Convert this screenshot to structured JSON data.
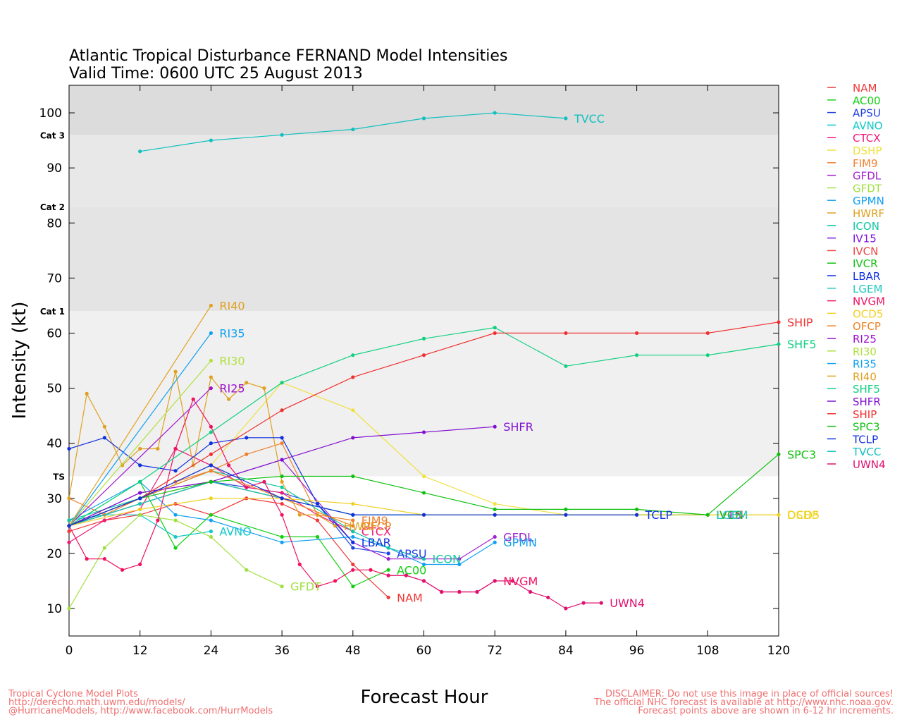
{
  "chart_data": {
    "type": "line",
    "title": "Atlantic Tropical Disturbance FERNAND Model Intensities",
    "subtitle": "Valid Time: 0600 UTC 25 August 2013",
    "xlabel": "Forecast Hour",
    "ylabel": "Intensity (kt)",
    "xlim": [
      0,
      120
    ],
    "ylim": [
      5,
      105
    ],
    "xticks": [
      "0",
      "12",
      "24",
      "36",
      "48",
      "60",
      "72",
      "84",
      "96",
      "108",
      "120"
    ],
    "yticks": [
      "10",
      "20",
      "30",
      "40",
      "50",
      "60",
      "70",
      "80",
      "90",
      "100"
    ],
    "bands": [
      {
        "label": "Cat 3",
        "from": 96,
        "to": 105,
        "color": "#dcdcdc"
      },
      {
        "label": "Cat 2",
        "from": 83,
        "to": 96,
        "color": "#e8e8e8"
      },
      {
        "label": "Cat 1",
        "from": 64,
        "to": 83,
        "color": "#e4e4e4"
      },
      {
        "label": "TS",
        "from": 34,
        "to": 64,
        "color": "#f0f0f0"
      }
    ],
    "series": [
      {
        "name": "NAM",
        "color": "#f03838",
        "label": "NAM",
        "x": [
          0,
          6,
          12,
          18,
          24,
          30,
          36,
          42,
          48,
          54
        ],
        "y": [
          24,
          26,
          27,
          29,
          27,
          30,
          29,
          26,
          18,
          12
        ]
      },
      {
        "name": "AC00",
        "color": "#10d010",
        "label": "AC00",
        "x": [
          0,
          12,
          18,
          24,
          36,
          42,
          48,
          54
        ],
        "y": [
          25,
          33,
          21,
          27,
          23,
          23,
          14,
          17
        ]
      },
      {
        "name": "APSU",
        "color": "#2040e0",
        "label": "APSU",
        "x": [
          0,
          12,
          24,
          36,
          42,
          48,
          54
        ],
        "y": [
          25,
          29,
          33,
          31,
          29,
          21,
          20
        ]
      },
      {
        "name": "AVNO",
        "color": "#10c8c8",
        "label": "AVNO",
        "x": [
          0,
          6,
          12,
          18,
          24
        ],
        "y": [
          26,
          27,
          27,
          23,
          24
        ]
      },
      {
        "name": "CTCX",
        "color": "#f01878",
        "label": "CTCX",
        "x": [
          0,
          6,
          12,
          18,
          24,
          30,
          36,
          42,
          48
        ],
        "y": [
          22,
          26,
          28,
          39,
          36,
          32,
          31,
          27,
          24
        ]
      },
      {
        "name": "DSHP",
        "color": "#f0e040",
        "label": "DSHP",
        "x": [
          0,
          12,
          24,
          36,
          48,
          60,
          72,
          84,
          96,
          108,
          120
        ],
        "y": [
          25,
          30,
          36,
          51,
          46,
          34,
          29,
          27,
          27,
          27,
          27
        ]
      },
      {
        "name": "FIM9",
        "color": "#f08030",
        "label": "FIM9",
        "x": [
          0,
          6,
          12,
          18,
          24,
          30,
          36,
          42,
          48
        ],
        "y": [
          30,
          27,
          30,
          33,
          35,
          38,
          40,
          27,
          26
        ]
      },
      {
        "name": "GFDL",
        "color": "#a020d0",
        "label": "GFDL",
        "x": [
          0,
          12,
          24,
          36,
          48,
          54,
          60,
          66,
          72
        ],
        "y": [
          25,
          31,
          33,
          37,
          22,
          19,
          19,
          19,
          23
        ]
      },
      {
        "name": "GFDT",
        "color": "#a0e040",
        "label": "GFDT",
        "x": [
          0,
          6,
          12,
          18,
          24,
          30,
          36
        ],
        "y": [
          10,
          21,
          27,
          26,
          23,
          17,
          14
        ]
      },
      {
        "name": "GPMN",
        "color": "#10a0f0",
        "label": "GPMN",
        "x": [
          0,
          12,
          18,
          24,
          36,
          48,
          54,
          60,
          66,
          72
        ],
        "y": [
          26,
          33,
          27,
          26,
          22,
          23,
          21,
          18,
          18,
          22
        ]
      },
      {
        "name": "HWRF",
        "color": "#e0a020",
        "label": "HWRF",
        "x": [
          0,
          3,
          6,
          9,
          12,
          15,
          18,
          21,
          24,
          27,
          30,
          33,
          36,
          39,
          42,
          45
        ],
        "y": [
          30,
          49,
          43,
          36,
          39,
          39,
          53,
          36,
          52,
          48,
          51,
          50,
          33,
          27,
          27,
          25
        ]
      },
      {
        "name": "ICON",
        "color": "#10c8a0",
        "label": "ICON",
        "x": [
          0,
          12,
          24,
          36,
          48,
          54,
          60
        ],
        "y": [
          26,
          30,
          35,
          32,
          24,
          21,
          19
        ]
      },
      {
        "name": "IV15",
        "color": "#8010e0",
        "label": "IV15",
        "x": [
          0,
          12,
          24,
          36,
          48,
          60,
          72,
          84,
          96,
          108
        ],
        "y": [
          25,
          29,
          33,
          30,
          27,
          27,
          27,
          27,
          27,
          27
        ]
      },
      {
        "name": "IVCN",
        "color": "#f04040",
        "label": "IVCN",
        "x": [
          0,
          12,
          24,
          36,
          48,
          60,
          72,
          84,
          96,
          108
        ],
        "y": [
          25,
          29,
          33,
          30,
          27,
          27,
          27,
          27,
          27,
          27
        ]
      },
      {
        "name": "IVCR",
        "color": "#10c010",
        "label": "IVCR",
        "x": [
          0,
          12,
          24,
          36,
          48,
          60,
          72,
          84,
          96,
          108
        ],
        "y": [
          25,
          29,
          33,
          30,
          27,
          27,
          27,
          27,
          27,
          27
        ]
      },
      {
        "name": "LBAR",
        "color": "#1030e0",
        "label": "LBAR",
        "x": [
          0,
          6,
          12,
          18,
          24,
          30,
          36,
          42,
          48
        ],
        "y": [
          39,
          41,
          36,
          35,
          40,
          41,
          41,
          29,
          22
        ]
      },
      {
        "name": "LGEM",
        "color": "#20c8c0",
        "label": "LGEM",
        "x": [
          0,
          12,
          24,
          36,
          48,
          60,
          72,
          84,
          96,
          108
        ],
        "y": [
          25,
          29,
          33,
          30,
          27,
          27,
          27,
          27,
          27,
          27
        ]
      },
      {
        "name": "NVGM",
        "color": "#f01060",
        "label": "NVGM",
        "x": [
          0,
          3,
          6,
          9,
          12,
          15,
          18,
          21,
          24,
          27,
          30,
          33,
          36,
          39,
          42,
          45,
          48,
          51,
          54,
          57,
          60,
          63,
          66,
          69,
          72
        ],
        "y": [
          25,
          19,
          19,
          17,
          18,
          26,
          39,
          48,
          43,
          36,
          32,
          33,
          27,
          18,
          14,
          15,
          17,
          17,
          16,
          16,
          15,
          13,
          13,
          13,
          15
        ]
      },
      {
        "name": "OCD5",
        "color": "#f0d020",
        "label": "OCD5",
        "x": [
          0,
          12,
          24,
          36,
          48,
          60,
          72,
          84,
          96,
          108,
          120
        ],
        "y": [
          25,
          28,
          30,
          30,
          29,
          27,
          27,
          27,
          27,
          27,
          27
        ]
      },
      {
        "name": "OFCP",
        "color": "#f08020",
        "label": "OFCP",
        "x": [
          0,
          12,
          24,
          36,
          48
        ],
        "y": [
          25,
          30,
          35,
          30,
          25
        ]
      },
      {
        "name": "RI25",
        "color": "#a010d0",
        "label": "RI25",
        "x": [
          0,
          24
        ],
        "y": [
          25,
          50
        ]
      },
      {
        "name": "RI30",
        "color": "#b0e040",
        "label": "RI30",
        "x": [
          0,
          24
        ],
        "y": [
          25,
          55
        ]
      },
      {
        "name": "RI35",
        "color": "#10a0f0",
        "label": "RI35",
        "x": [
          0,
          24
        ],
        "y": [
          25,
          60
        ]
      },
      {
        "name": "RI40",
        "color": "#e0a020",
        "label": "RI40",
        "x": [
          0,
          24
        ],
        "y": [
          25,
          65
        ]
      },
      {
        "name": "SHF5",
        "color": "#10d080",
        "label": "SHF5",
        "x": [
          0,
          12,
          24,
          36,
          48,
          60,
          72,
          84,
          96,
          108,
          120
        ],
        "y": [
          25,
          33,
          42,
          51,
          56,
          59,
          61,
          54,
          56,
          56,
          58
        ]
      },
      {
        "name": "SHFR",
        "color": "#8010d0",
        "label": "SHFR",
        "x": [
          0,
          12,
          24,
          36,
          48,
          60,
          72
        ],
        "y": [
          25,
          31,
          33,
          37,
          41,
          42,
          43
        ]
      },
      {
        "name": "SHIP",
        "color": "#f03030",
        "label": "SHIP",
        "x": [
          0,
          12,
          24,
          36,
          48,
          60,
          72,
          84,
          96,
          108,
          120
        ],
        "y": [
          25,
          30,
          38,
          46,
          52,
          56,
          60,
          60,
          60,
          60,
          62
        ]
      },
      {
        "name": "SPC3",
        "color": "#10c010",
        "label": "SPC3",
        "x": [
          0,
          12,
          24,
          36,
          48,
          60,
          72,
          84,
          96,
          108,
          120
        ],
        "y": [
          25,
          30,
          33,
          34,
          34,
          31,
          28,
          28,
          28,
          27,
          38
        ]
      },
      {
        "name": "TCLP",
        "color": "#1030e0",
        "label": "TCLP",
        "x": [
          0,
          12,
          24,
          36,
          48,
          60,
          72,
          84,
          96
        ],
        "y": [
          25,
          30,
          36,
          30,
          27,
          27,
          27,
          27,
          27
        ]
      },
      {
        "name": "TVCC",
        "color": "#10c0c0",
        "label": "TVCC",
        "x": [
          12,
          24,
          36,
          48,
          60,
          72,
          84
        ],
        "y": [
          93,
          95,
          96,
          97,
          99,
          100,
          99
        ]
      },
      {
        "name": "UWN4",
        "color": "#e01070",
        "label": "UWN4",
        "x": [
          54,
          57,
          60,
          63,
          66,
          69,
          72,
          75,
          78,
          81,
          84,
          87,
          90
        ],
        "y": [
          16,
          16,
          15,
          13,
          13,
          13,
          15,
          15,
          13,
          12,
          10,
          11,
          11
        ]
      }
    ]
  },
  "legend": {
    "entries": [
      "NAM",
      "AC00",
      "APSU",
      "AVNO",
      "CTCX",
      "DSHP",
      "FIM9",
      "GFDL",
      "GFDT",
      "GPMN",
      "HWRF",
      "ICON",
      "IV15",
      "IVCN",
      "IVCR",
      "LBAR",
      "LGEM",
      "NVGM",
      "OCD5",
      "OFCP",
      "RI25",
      "RI30",
      "RI35",
      "RI40",
      "SHF5",
      "SHFR",
      "SHIP",
      "SPC3",
      "TCLP",
      "TVCC",
      "UWN4"
    ]
  },
  "footer": {
    "left_line1": "Tropical Cyclone Model Plots",
    "left_line2": "http://derecho.math.uwm.edu/models/",
    "left_line3": "@HurricaneModels, http://www.facebook.com/HurrModels",
    "right_line1": "DISCLAIMER: Do not use this image in place of official sources!",
    "right_line2": "The official NHC forecast is available at http://www.nhc.noaa.gov.",
    "right_line3": "Forecast points above are shown in 6-12 hr increments."
  }
}
